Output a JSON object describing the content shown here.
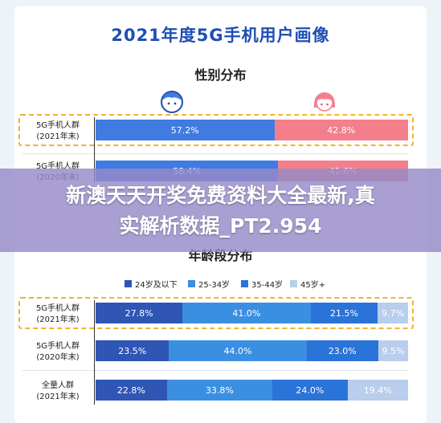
{
  "main_title": "2021年度5G手机用户画像",
  "banner": {
    "line1": "新澳天天开奖免费资料大全最新,真",
    "line2": "实解析数据_PT2.954"
  },
  "colors": {
    "title": "#1e4fb3",
    "male": "#3f7be0",
    "female": "#f47f8c",
    "age_24_below": "#2f55b5",
    "age_25_34": "#3b8fe3",
    "age_35_44": "#2a73d8",
    "age_45_plus": "#b9cdec",
    "highlight_border": "#f2b233",
    "banner": "#968ac8"
  },
  "icons": [
    "male-user-icon",
    "female-user-icon"
  ],
  "chart_data": [
    {
      "type": "bar",
      "stacked": true,
      "orientation": "horizontal",
      "title": "性别分布",
      "categories": [
        "5G手机人群\n(2021年末)",
        "5G手机人群\n(2020年末)"
      ],
      "series": [
        {
          "name": "",
          "values": [
            57.2,
            58.4
          ],
          "labels": [
            "57.2%",
            "58.4%"
          ]
        },
        {
          "name": "",
          "values": [
            42.8,
            41.6
          ],
          "labels": [
            "42.8%",
            "41.6%"
          ]
        }
      ],
      "xlim": [
        0,
        100
      ],
      "highlighted_category": "5G手机人群\n(2021年末)"
    },
    {
      "type": "bar",
      "stacked": true,
      "orientation": "horizontal",
      "title": "年龄段分布",
      "categories": [
        "5G手机人群\n(2021年末)",
        "5G手机人群\n(2020年末)",
        "全量人群\n(2021年末)"
      ],
      "series": [
        {
          "name": "24岁及以下",
          "values": [
            27.8,
            23.5,
            22.8
          ],
          "labels": [
            "27.8%",
            "23.5%",
            "22.8%"
          ]
        },
        {
          "name": "25-34岁",
          "values": [
            41.0,
            44.0,
            33.8
          ],
          "labels": [
            "41.0%",
            "44.0%",
            "33.8%"
          ]
        },
        {
          "name": "35-44岁",
          "values": [
            21.5,
            23.0,
            24.0
          ],
          "labels": [
            "21.5%",
            "23.0%",
            "24.0%"
          ]
        },
        {
          "name": "45岁+",
          "values": [
            9.7,
            9.5,
            19.4
          ],
          "labels": [
            "9.7%",
            "9.5%",
            "19.4%"
          ]
        }
      ],
      "xlim": [
        0,
        100
      ],
      "legend_position": "top",
      "highlighted_category": "5G手机人群\n(2021年末)"
    }
  ]
}
